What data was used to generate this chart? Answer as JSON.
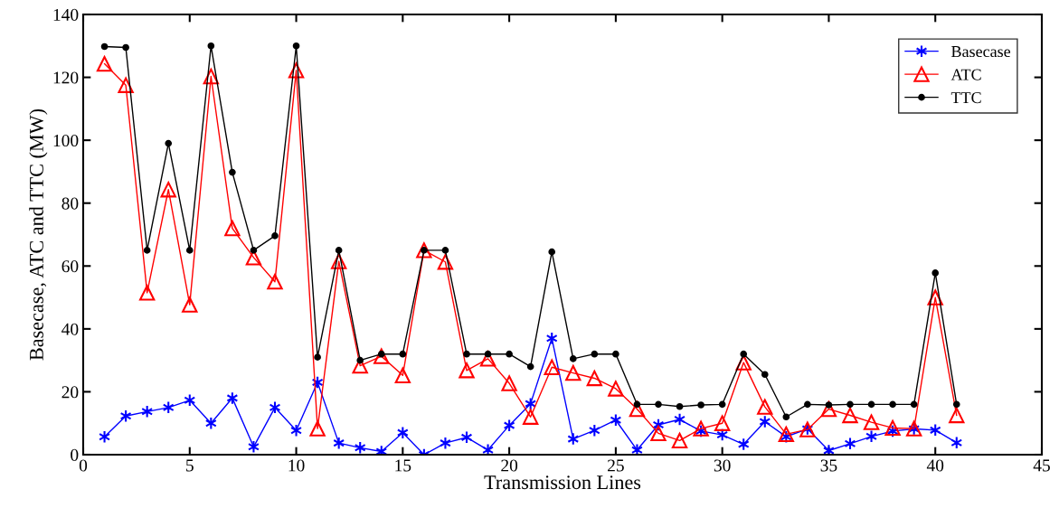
{
  "chart_data": {
    "type": "line",
    "xlabel": "Transmission Lines",
    "ylabel": "Basecase, ATC and TTC (MW)",
    "x": [
      1,
      2,
      3,
      4,
      5,
      6,
      7,
      8,
      9,
      10,
      11,
      12,
      13,
      14,
      15,
      16,
      17,
      18,
      19,
      20,
      21,
      22,
      23,
      24,
      25,
      26,
      27,
      28,
      29,
      30,
      31,
      32,
      33,
      34,
      35,
      36,
      37,
      38,
      39,
      40,
      41
    ],
    "series": [
      {
        "name": "Basecase",
        "color": "#0000ff",
        "marker": "cross",
        "values": [
          5.7,
          12.3,
          13.7,
          15,
          17.3,
          10,
          18,
          2.5,
          15,
          7.7,
          23,
          3.7,
          2.2,
          1,
          7,
          0,
          3.7,
          5.5,
          1.5,
          9.3,
          16.2,
          37,
          5,
          7.7,
          11,
          1.5,
          9.5,
          11.2,
          7.5,
          6.3,
          3.3,
          10.5,
          5.7,
          8.2,
          1.3,
          3.5,
          5.8,
          7.5,
          8.2,
          7.8,
          3.8
        ]
      },
      {
        "name": "ATC",
        "color": "#ff0000",
        "marker": "triangle",
        "values": [
          124.3,
          117.5,
          51.5,
          84.3,
          47.7,
          120.3,
          72,
          62.7,
          55,
          122.2,
          8.3,
          61.5,
          28.3,
          31.3,
          25.2,
          65,
          61.3,
          26.8,
          30.5,
          22.7,
          12,
          27.8,
          26,
          24.3,
          21,
          14.5,
          6.8,
          4.5,
          8.3,
          10,
          29.3,
          15.2,
          6.5,
          8,
          14.5,
          12.5,
          10.3,
          8.5,
          8.3,
          50,
          12.5
        ]
      },
      {
        "name": "TTC",
        "color": "#000000",
        "marker": "circle",
        "values": [
          129.8,
          129.5,
          65,
          99,
          65,
          130,
          89.8,
          65,
          69.6,
          130,
          31,
          65,
          30,
          32,
          32,
          65,
          65,
          32,
          32,
          32,
          28,
          64.5,
          30.5,
          32,
          32,
          16,
          16,
          15.3,
          15.8,
          16,
          32,
          25.5,
          12,
          16,
          15.8,
          16,
          16,
          16,
          16,
          57.8,
          16
        ]
      }
    ],
    "xlim": [
      0,
      45
    ],
    "xticks": [
      0,
      5,
      10,
      15,
      20,
      25,
      30,
      35,
      40,
      45
    ],
    "ylim": [
      0,
      140
    ],
    "yticks": [
      0,
      20,
      40,
      60,
      80,
      100,
      120,
      140
    ],
    "grid": false,
    "legend": "top right",
    "line_style": "solid"
  }
}
